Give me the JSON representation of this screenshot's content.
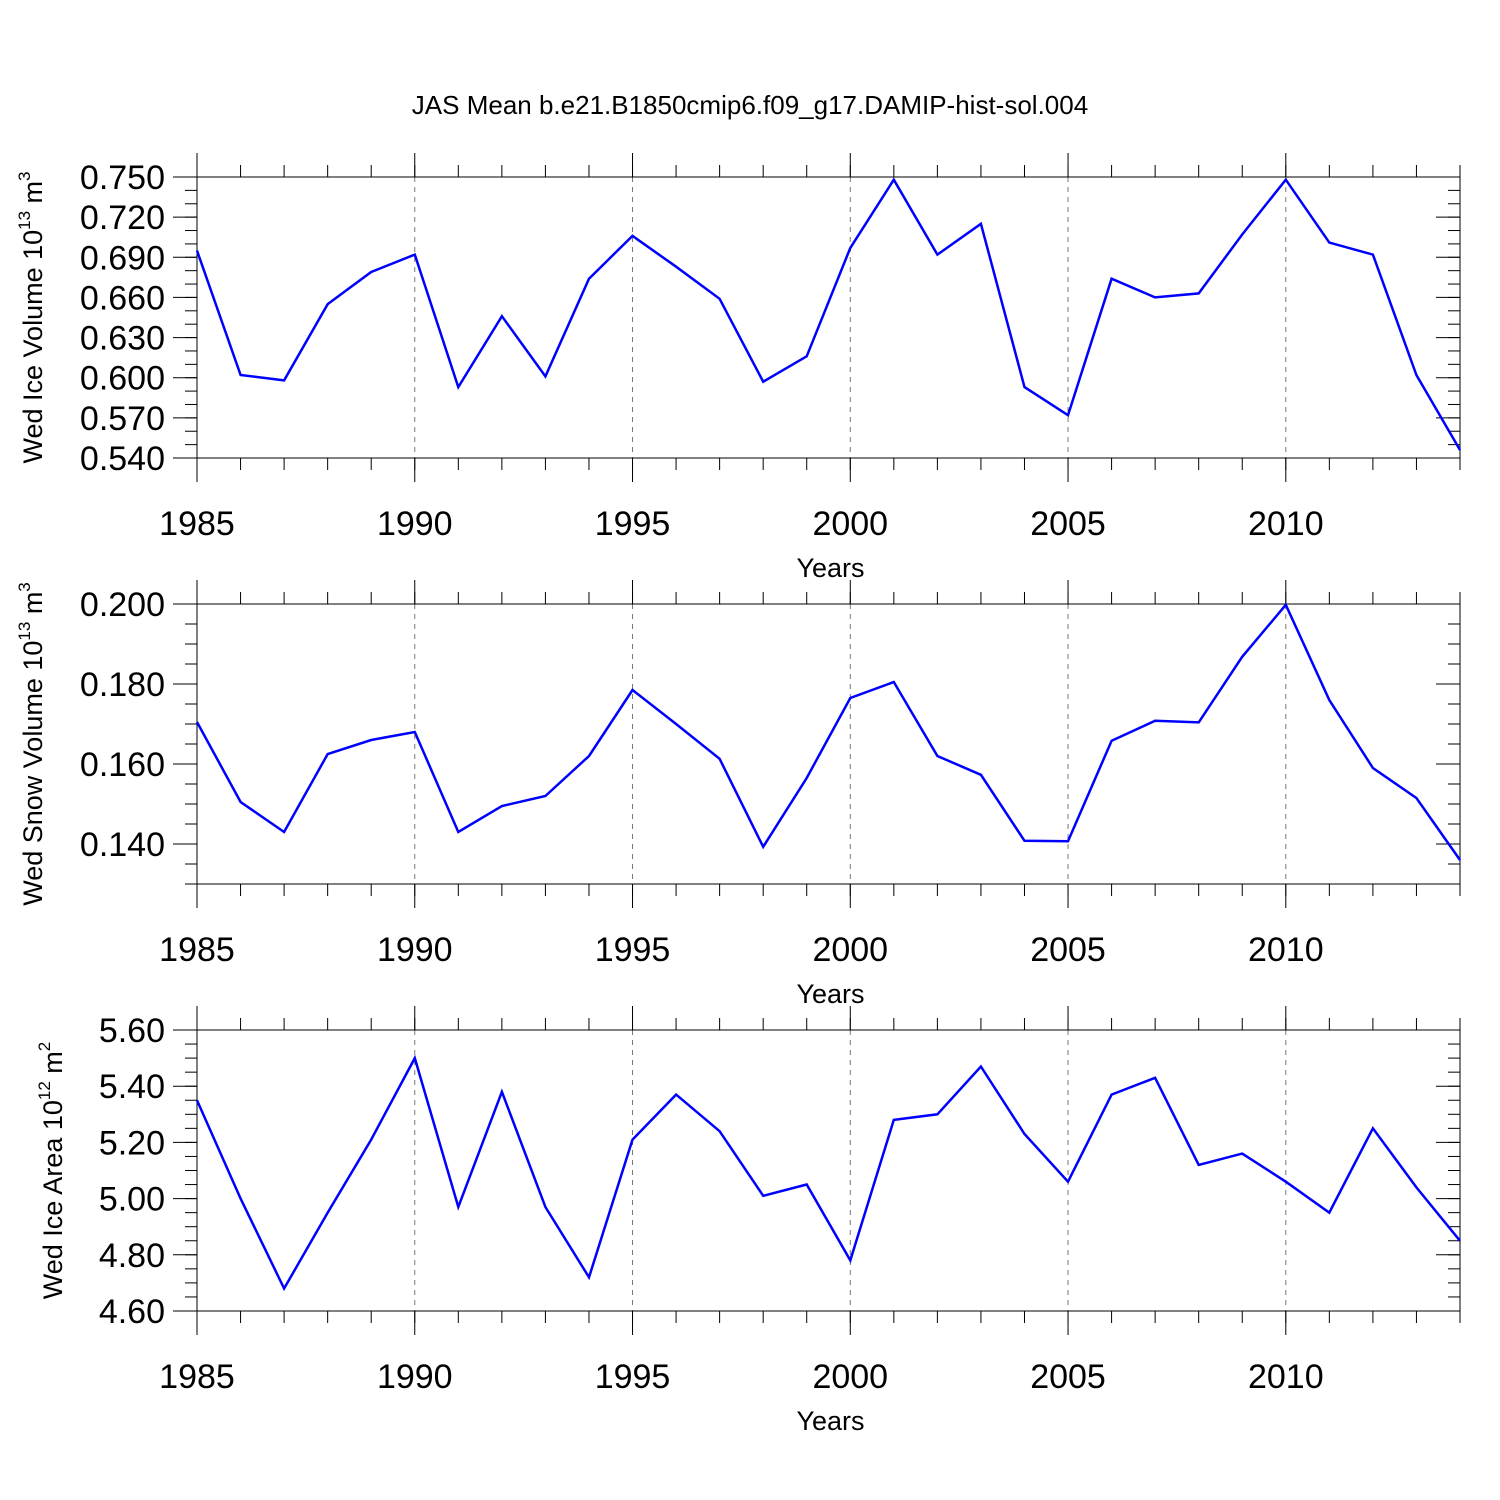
{
  "title": "JAS Mean b.e21.B1850cmip6.f09_g17.DAMIP-hist-sol.004",
  "line_color": "#0000ff",
  "chart_data": [
    {
      "type": "line",
      "ylabel_parts": [
        "Wed Ice Volume 10",
        "13",
        " m",
        "3"
      ],
      "xlabel": "Years",
      "xlim": [
        1985,
        2014
      ],
      "ylim": [
        0.54,
        0.75
      ],
      "yticks": [
        0.54,
        0.57,
        0.6,
        0.63,
        0.66,
        0.69,
        0.72,
        0.75
      ],
      "ytick_labels": [
        "0.540",
        "0.570",
        "0.600",
        "0.630",
        "0.660",
        "0.690",
        "0.720",
        "0.750"
      ],
      "xticks": [
        1985,
        1990,
        1995,
        2000,
        2005,
        2010
      ],
      "xtick_labels": [
        "1985",
        "1990",
        "1995",
        "2000",
        "2005",
        "2010"
      ],
      "grid": "dashed vertical at major x ticks",
      "x": [
        1985,
        1986,
        1987,
        1988,
        1989,
        1990,
        1991,
        1992,
        1993,
        1994,
        1995,
        1996,
        1997,
        1998,
        1999,
        2000,
        2001,
        2002,
        2003,
        2004,
        2005,
        2006,
        2007,
        2008,
        2009,
        2010,
        2011,
        2012,
        2013,
        2014
      ],
      "y": [
        0.695,
        0.602,
        0.598,
        0.655,
        0.679,
        0.692,
        0.593,
        0.646,
        0.601,
        0.674,
        0.706,
        0.683,
        0.659,
        0.597,
        0.616,
        0.697,
        0.748,
        0.692,
        0.715,
        0.593,
        0.572,
        0.674,
        0.66,
        0.663,
        0.707,
        0.748,
        0.701,
        0.692,
        0.602,
        0.546
      ]
    },
    {
      "type": "line",
      "ylabel_parts": [
        "Wed Snow Volume 10",
        "13",
        " m",
        "3"
      ],
      "xlabel": "Years",
      "xlim": [
        1985,
        2014
      ],
      "ylim": [
        0.13,
        0.2
      ],
      "yticks": [
        0.14,
        0.16,
        0.18,
        0.2
      ],
      "ytick_labels": [
        "0.140",
        "0.160",
        "0.180",
        "0.200"
      ],
      "xticks": [
        1985,
        1990,
        1995,
        2000,
        2005,
        2010
      ],
      "xtick_labels": [
        "1985",
        "1990",
        "1995",
        "2000",
        "2005",
        "2010"
      ],
      "grid": "dashed vertical at major x ticks",
      "x": [
        1985,
        1986,
        1987,
        1988,
        1989,
        1990,
        1991,
        1992,
        1993,
        1994,
        1995,
        1996,
        1997,
        1998,
        1999,
        2000,
        2001,
        2002,
        2003,
        2004,
        2005,
        2006,
        2007,
        2008,
        2009,
        2010,
        2011,
        2012,
        2013,
        2014
      ],
      "y": [
        0.1705,
        0.1505,
        0.143,
        0.1625,
        0.166,
        0.168,
        0.143,
        0.1495,
        0.152,
        0.162,
        0.1785,
        0.17,
        0.1613,
        0.1393,
        0.1565,
        0.1765,
        0.1805,
        0.162,
        0.1573,
        0.1408,
        0.1407,
        0.1658,
        0.1708,
        0.1704,
        0.1868,
        0.1998,
        0.176,
        0.159,
        0.1515,
        0.136
      ]
    },
    {
      "type": "line",
      "ylabel_parts": [
        "Wed Ice Area 10",
        "12",
        " m",
        "2"
      ],
      "xlabel": "Years",
      "xlim": [
        1985,
        2014
      ],
      "ylim": [
        4.6,
        5.6
      ],
      "yticks": [
        4.6,
        4.8,
        5.0,
        5.2,
        5.4,
        5.6
      ],
      "ytick_labels": [
        "4.60",
        "4.80",
        "5.00",
        "5.20",
        "5.40",
        "5.60"
      ],
      "xticks": [
        1985,
        1990,
        1995,
        2000,
        2005,
        2010
      ],
      "xtick_labels": [
        "1985",
        "1990",
        "1995",
        "2000",
        "2005",
        "2010"
      ],
      "grid": "dashed vertical at major x ticks",
      "x": [
        1985,
        1986,
        1987,
        1988,
        1989,
        1990,
        1991,
        1992,
        1993,
        1994,
        1995,
        1996,
        1997,
        1998,
        1999,
        2000,
        2001,
        2002,
        2003,
        2004,
        2005,
        2006,
        2007,
        2008,
        2009,
        2010,
        2011,
        2012,
        2013,
        2014
      ],
      "y": [
        5.35,
        5.0,
        4.68,
        4.95,
        5.21,
        5.5,
        4.97,
        5.38,
        4.97,
        4.72,
        5.21,
        5.37,
        5.24,
        5.01,
        5.05,
        4.78,
        5.28,
        5.3,
        5.47,
        5.23,
        5.06,
        5.37,
        5.43,
        5.12,
        5.16,
        5.06,
        4.95,
        5.25,
        5.04,
        4.85
      ]
    }
  ]
}
